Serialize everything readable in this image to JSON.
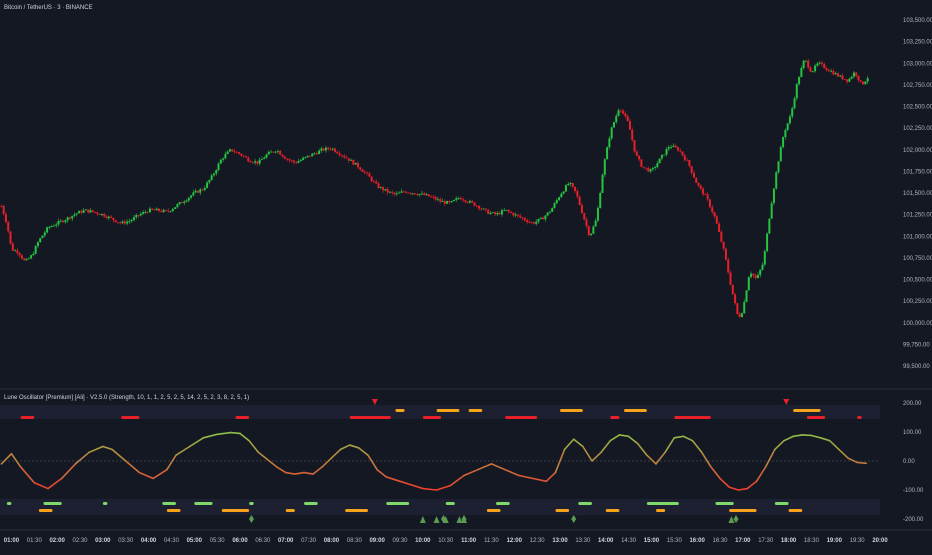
{
  "main_title": "Bitcoin / TetherUS · 3 · BINANCE",
  "indicator_title": "Lune Oscillator [Premium] [Ali] · V2.5.0 (Strength, 10, 1, 1, 2, 5, 2, 5, 14, 2, 5, 2, 3, 8, 2, 5, 1)",
  "colors": {
    "background": "#141823",
    "up": "#26c541",
    "down": "#e8202a",
    "text": "#b2b5be",
    "oscillator_high": "#8bc34a",
    "oscillator_low": "#f23c2f",
    "orange": "#f7a21b",
    "light_green": "#7fd96b",
    "marker_green": "#5a9b52"
  },
  "chart_data": [
    {
      "type": "candlestick",
      "title": "Bitcoin / TetherUS · 3 · BINANCE",
      "ylim": [
        99500,
        103700
      ],
      "y_ticks": [
        "103,500.00",
        "103,250.00",
        "103,000.00",
        "102,750.00",
        "102,500.00",
        "102,250.00",
        "102,000.00",
        "101,750.00",
        "101,500.00",
        "101,250.00",
        "101,000.00",
        "100,750.00",
        "100,500.00",
        "100,250.00",
        "100,000.00",
        "99,750.00",
        "99,500.00"
      ],
      "y_tick_values": [
        103500,
        103250,
        103000,
        102750,
        102500,
        102250,
        102000,
        101750,
        101500,
        101250,
        101000,
        100750,
        100500,
        100250,
        100000,
        99750,
        99500
      ],
      "x_range_hours": [
        0.75,
        20.0
      ],
      "x_ticks": [
        "01:00",
        "01:30",
        "02:00",
        "02:30",
        "03:00",
        "03:30",
        "04:00",
        "04:30",
        "05:00",
        "05:30",
        "06:00",
        "06:30",
        "07:00",
        "07:30",
        "08:00",
        "08:30",
        "09:00",
        "09:30",
        "10:00",
        "10:30",
        "11:00",
        "11:30",
        "12:00",
        "12:30",
        "13:00",
        "13:30",
        "14:00",
        "14:30",
        "15:00",
        "15:30",
        "16:00",
        "16:30",
        "17:00",
        "17:30",
        "18:00",
        "18:30",
        "19:00",
        "19:30",
        "20:00"
      ],
      "x_tick_values": [
        1,
        1.5,
        2,
        2.5,
        3,
        3.5,
        4,
        4.5,
        5,
        5.5,
        6,
        6.5,
        7,
        7.5,
        8,
        8.5,
        9,
        9.5,
        10,
        10.5,
        11,
        11.5,
        12,
        12.5,
        13,
        13.5,
        14,
        14.5,
        15,
        15.5,
        16,
        16.5,
        17,
        17.5,
        18,
        18.5,
        19,
        19.5,
        20
      ],
      "price_path": [
        [
          0.78,
          101350
        ],
        [
          0.9,
          101150
        ],
        [
          1.0,
          100850
        ],
        [
          1.15,
          100820
        ],
        [
          1.3,
          100700
        ],
        [
          1.45,
          100780
        ],
        [
          1.6,
          100950
        ],
        [
          1.8,
          101100
        ],
        [
          2.0,
          101150
        ],
        [
          2.2,
          101200
        ],
        [
          2.4,
          101260
        ],
        [
          2.6,
          101300
        ],
        [
          2.8,
          101280
        ],
        [
          3.0,
          101250
        ],
        [
          3.2,
          101200
        ],
        [
          3.4,
          101150
        ],
        [
          3.6,
          101180
        ],
        [
          3.8,
          101250
        ],
        [
          4.0,
          101300
        ],
        [
          4.2,
          101300
        ],
        [
          4.4,
          101280
        ],
        [
          4.6,
          101350
        ],
        [
          4.8,
          101420
        ],
        [
          5.0,
          101500
        ],
        [
          5.2,
          101550
        ],
        [
          5.4,
          101700
        ],
        [
          5.6,
          101900
        ],
        [
          5.8,
          102000
        ],
        [
          6.0,
          101950
        ],
        [
          6.2,
          101880
        ],
        [
          6.4,
          101850
        ],
        [
          6.6,
          101950
        ],
        [
          6.8,
          102000
        ],
        [
          7.0,
          101900
        ],
        [
          7.2,
          101850
        ],
        [
          7.4,
          101900
        ],
        [
          7.6,
          101950
        ],
        [
          7.8,
          102000
        ],
        [
          8.0,
          102020
        ],
        [
          8.2,
          101950
        ],
        [
          8.4,
          101880
        ],
        [
          8.6,
          101800
        ],
        [
          8.8,
          101700
        ],
        [
          9.0,
          101580
        ],
        [
          9.2,
          101520
        ],
        [
          9.4,
          101480
        ],
        [
          9.6,
          101520
        ],
        [
          9.8,
          101500
        ],
        [
          10.0,
          101480
        ],
        [
          10.2,
          101450
        ],
        [
          10.4,
          101400
        ],
        [
          10.6,
          101380
        ],
        [
          10.8,
          101450
        ],
        [
          11.0,
          101400
        ],
        [
          11.2,
          101350
        ],
        [
          11.4,
          101280
        ],
        [
          11.6,
          101250
        ],
        [
          11.8,
          101300
        ],
        [
          12.0,
          101250
        ],
        [
          12.2,
          101200
        ],
        [
          12.4,
          101150
        ],
        [
          12.6,
          101200
        ],
        [
          12.8,
          101300
        ],
        [
          13.0,
          101480
        ],
        [
          13.2,
          101620
        ],
        [
          13.35,
          101500
        ],
        [
          13.5,
          101250
        ],
        [
          13.65,
          101000
        ],
        [
          13.8,
          101200
        ],
        [
          13.95,
          101800
        ],
        [
          14.1,
          102200
        ],
        [
          14.3,
          102500
        ],
        [
          14.5,
          102300
        ],
        [
          14.65,
          101950
        ],
        [
          14.8,
          101800
        ],
        [
          15.0,
          101750
        ],
        [
          15.2,
          101900
        ],
        [
          15.4,
          102050
        ],
        [
          15.6,
          102000
        ],
        [
          15.8,
          101850
        ],
        [
          16.0,
          101600
        ],
        [
          16.2,
          101450
        ],
        [
          16.4,
          101200
        ],
        [
          16.6,
          100800
        ],
        [
          16.75,
          100400
        ],
        [
          16.9,
          100050
        ],
        [
          17.0,
          100150
        ],
        [
          17.15,
          100600
        ],
        [
          17.3,
          100500
        ],
        [
          17.45,
          100700
        ],
        [
          17.6,
          101300
        ],
        [
          17.75,
          101800
        ],
        [
          17.9,
          102200
        ],
        [
          18.05,
          102400
        ],
        [
          18.2,
          102800
        ],
        [
          18.35,
          103050
        ],
        [
          18.5,
          102900
        ],
        [
          18.65,
          103000
        ],
        [
          18.8,
          102950
        ],
        [
          18.95,
          102900
        ],
        [
          19.1,
          102850
        ],
        [
          19.3,
          102800
        ],
        [
          19.45,
          102900
        ],
        [
          19.6,
          102750
        ],
        [
          19.75,
          102850
        ]
      ]
    },
    {
      "type": "line",
      "title": "Lune Oscillator [Premium] [Ali] · V2.5.0 (Strength, 10, 1, 1, 2, 5, 2, 5, 14, 2, 5, 2, 3, 8, 2, 5, 1)",
      "ylim": [
        -230,
        230
      ],
      "y_ticks": [
        "200.00",
        "100.00",
        "0.00",
        "-100.00",
        "-200.00"
      ],
      "y_tick_values": [
        200,
        100,
        0,
        -100,
        -200
      ],
      "oscillator": [
        [
          0.78,
          -10
        ],
        [
          1.0,
          25
        ],
        [
          1.2,
          -20
        ],
        [
          1.5,
          -75
        ],
        [
          1.8,
          -95
        ],
        [
          2.1,
          -60
        ],
        [
          2.4,
          -10
        ],
        [
          2.7,
          30
        ],
        [
          3.0,
          50
        ],
        [
          3.2,
          40
        ],
        [
          3.5,
          0
        ],
        [
          3.8,
          -40
        ],
        [
          4.1,
          -60
        ],
        [
          4.4,
          -30
        ],
        [
          4.6,
          20
        ],
        [
          4.9,
          50
        ],
        [
          5.2,
          80
        ],
        [
          5.5,
          92
        ],
        [
          5.8,
          98
        ],
        [
          6.0,
          95
        ],
        [
          6.2,
          70
        ],
        [
          6.4,
          30
        ],
        [
          6.6,
          5
        ],
        [
          6.8,
          -20
        ],
        [
          7.0,
          -40
        ],
        [
          7.2,
          -45
        ],
        [
          7.4,
          -40
        ],
        [
          7.6,
          -45
        ],
        [
          7.8,
          -20
        ],
        [
          8.0,
          10
        ],
        [
          8.2,
          40
        ],
        [
          8.4,
          55
        ],
        [
          8.6,
          45
        ],
        [
          8.8,
          20
        ],
        [
          9.0,
          -30
        ],
        [
          9.2,
          -55
        ],
        [
          9.5,
          -70
        ],
        [
          9.8,
          -85
        ],
        [
          10.0,
          -95
        ],
        [
          10.3,
          -100
        ],
        [
          10.6,
          -85
        ],
        [
          10.9,
          -50
        ],
        [
          11.2,
          -30
        ],
        [
          11.5,
          -10
        ],
        [
          11.8,
          -30
        ],
        [
          12.1,
          -50
        ],
        [
          12.4,
          -60
        ],
        [
          12.7,
          -70
        ],
        [
          12.9,
          -40
        ],
        [
          13.1,
          40
        ],
        [
          13.3,
          75
        ],
        [
          13.5,
          50
        ],
        [
          13.7,
          0
        ],
        [
          13.9,
          30
        ],
        [
          14.1,
          70
        ],
        [
          14.3,
          90
        ],
        [
          14.5,
          85
        ],
        [
          14.7,
          60
        ],
        [
          14.9,
          20
        ],
        [
          15.1,
          -10
        ],
        [
          15.3,
          30
        ],
        [
          15.5,
          80
        ],
        [
          15.7,
          85
        ],
        [
          15.9,
          70
        ],
        [
          16.1,
          30
        ],
        [
          16.3,
          -20
        ],
        [
          16.5,
          -60
        ],
        [
          16.7,
          -90
        ],
        [
          16.9,
          -100
        ],
        [
          17.1,
          -95
        ],
        [
          17.3,
          -70
        ],
        [
          17.5,
          -20
        ],
        [
          17.7,
          40
        ],
        [
          17.9,
          70
        ],
        [
          18.1,
          85
        ],
        [
          18.3,
          90
        ],
        [
          18.5,
          88
        ],
        [
          18.7,
          80
        ],
        [
          18.9,
          70
        ],
        [
          19.1,
          40
        ],
        [
          19.3,
          10
        ],
        [
          19.5,
          -5
        ],
        [
          19.7,
          -8
        ]
      ],
      "triangles_down": [
        8.95,
        17.95
      ],
      "triangles_up": [
        10.0,
        10.3,
        10.5,
        10.8,
        10.9,
        16.75
      ],
      "diamonds": [
        6.25,
        10.45,
        10.9,
        13.3,
        16.85
      ],
      "top_red_bars": [
        [
          1.2,
          1.5
        ],
        [
          3.4,
          3.8
        ],
        [
          5.9,
          6.2
        ],
        [
          8.4,
          9.3
        ],
        [
          10.0,
          10.4
        ],
        [
          11.8,
          12.5
        ],
        [
          14.1,
          14.3
        ],
        [
          15.5,
          16.3
        ],
        [
          18.4,
          18.8
        ],
        [
          19.5,
          19.6
        ]
      ],
      "top_orange_bars": [
        [
          9.4,
          9.6
        ],
        [
          10.3,
          10.8
        ],
        [
          11.0,
          11.3
        ],
        [
          13.0,
          13.5
        ],
        [
          14.4,
          14.9
        ],
        [
          18.1,
          18.7
        ]
      ],
      "bottom_green_bars": [
        [
          0.9,
          1.0
        ],
        [
          1.7,
          2.1
        ],
        [
          3.0,
          3.1
        ],
        [
          4.3,
          4.6
        ],
        [
          5.0,
          5.4
        ],
        [
          6.2,
          6.3
        ],
        [
          7.4,
          7.7
        ],
        [
          9.2,
          9.7
        ],
        [
          10.5,
          10.7
        ],
        [
          11.6,
          11.9
        ],
        [
          13.4,
          13.7
        ],
        [
          14.9,
          15.6
        ],
        [
          16.4,
          16.8
        ],
        [
          17.7,
          18.0
        ]
      ],
      "bottom_orange_bars": [
        [
          1.6,
          1.9
        ],
        [
          4.4,
          4.7
        ],
        [
          5.6,
          6.2
        ],
        [
          7.0,
          7.2
        ],
        [
          8.3,
          8.8
        ],
        [
          11.4,
          11.7
        ],
        [
          12.9,
          13.2
        ],
        [
          14.0,
          14.3
        ],
        [
          15.1,
          15.3
        ],
        [
          16.7,
          17.3
        ],
        [
          18.0,
          18.3
        ]
      ]
    }
  ]
}
